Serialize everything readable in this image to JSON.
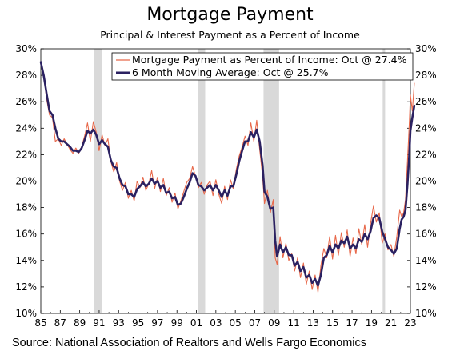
{
  "title": "Mortgage Payment",
  "subtitle": "Principal & Interest Payment as a Percent of Income",
  "source": "Source: National Association of Realtors and Wells Fargo Economics",
  "colors": {
    "raw": "#e8694b",
    "avg": "#2b2161",
    "recession": "#d9d9d9"
  },
  "chart_data": {
    "type": "line",
    "xlim": [
      1985,
      2023
    ],
    "ylim": [
      10,
      30
    ],
    "y_ticks": [
      "10%",
      "12%",
      "14%",
      "16%",
      "18%",
      "20%",
      "22%",
      "24%",
      "26%",
      "28%",
      "30%"
    ],
    "x_ticks": [
      "85",
      "87",
      "89",
      "91",
      "93",
      "95",
      "97",
      "99",
      "01",
      "03",
      "05",
      "07",
      "09",
      "11",
      "13",
      "15",
      "17",
      "19",
      "21",
      "23"
    ],
    "recessions": [
      [
        1990.5,
        1991.25
      ],
      [
        2001.2,
        2001.9
      ],
      [
        2007.9,
        2009.5
      ],
      [
        2020.15,
        2020.4
      ]
    ],
    "legend_position": "top-center",
    "series": [
      {
        "name": "Mortgage Payment as Percent of Income: Oct @ 27.4%",
        "style": "thin",
        "points": [
          [
            1985.0,
            29.0
          ],
          [
            1985.3,
            28.0
          ],
          [
            1985.6,
            26.2
          ],
          [
            1985.9,
            25.0
          ],
          [
            1986.2,
            24.8
          ],
          [
            1986.5,
            23.0
          ],
          [
            1986.8,
            23.2
          ],
          [
            1987.1,
            22.7
          ],
          [
            1987.4,
            23.2
          ],
          [
            1987.7,
            22.8
          ],
          [
            1988.0,
            22.4
          ],
          [
            1988.3,
            22.1
          ],
          [
            1988.6,
            22.5
          ],
          [
            1988.9,
            22.1
          ],
          [
            1989.2,
            22.6
          ],
          [
            1989.5,
            23.4
          ],
          [
            1989.8,
            24.4
          ],
          [
            1990.1,
            23.0
          ],
          [
            1990.4,
            24.5
          ],
          [
            1990.7,
            23.7
          ],
          [
            1991.0,
            22.3
          ],
          [
            1991.3,
            23.5
          ],
          [
            1991.6,
            22.7
          ],
          [
            1991.9,
            23.2
          ],
          [
            1992.2,
            21.5
          ],
          [
            1992.5,
            20.7
          ],
          [
            1992.8,
            21.4
          ],
          [
            1993.1,
            20.0
          ],
          [
            1993.4,
            19.3
          ],
          [
            1993.7,
            19.9
          ],
          [
            1994.0,
            18.7
          ],
          [
            1994.3,
            19.3
          ],
          [
            1994.6,
            18.5
          ],
          [
            1994.9,
            20.0
          ],
          [
            1995.2,
            19.5
          ],
          [
            1995.5,
            20.3
          ],
          [
            1995.8,
            19.3
          ],
          [
            1996.1,
            19.8
          ],
          [
            1996.4,
            20.8
          ],
          [
            1996.7,
            19.4
          ],
          [
            1997.0,
            20.3
          ],
          [
            1997.3,
            19.2
          ],
          [
            1997.6,
            20.2
          ],
          [
            1997.9,
            18.9
          ],
          [
            1998.2,
            19.5
          ],
          [
            1998.5,
            18.4
          ],
          [
            1998.8,
            19.1
          ],
          [
            1999.1,
            17.9
          ],
          [
            1999.4,
            18.5
          ],
          [
            1999.7,
            19.2
          ],
          [
            2000.0,
            19.9
          ],
          [
            2000.3,
            20.2
          ],
          [
            2000.6,
            21.1
          ],
          [
            2000.9,
            20.4
          ],
          [
            2001.2,
            19.5
          ],
          [
            2001.5,
            19.9
          ],
          [
            2001.8,
            19.0
          ],
          [
            2002.1,
            19.7
          ],
          [
            2002.4,
            20.0
          ],
          [
            2002.7,
            18.9
          ],
          [
            2003.0,
            20.1
          ],
          [
            2003.3,
            19.0
          ],
          [
            2003.6,
            18.3
          ],
          [
            2003.9,
            19.6
          ],
          [
            2004.2,
            18.6
          ],
          [
            2004.5,
            20.1
          ],
          [
            2004.8,
            19.4
          ],
          [
            2005.1,
            20.9
          ],
          [
            2005.4,
            21.9
          ],
          [
            2005.7,
            22.6
          ],
          [
            2006.0,
            23.4
          ],
          [
            2006.3,
            22.7
          ],
          [
            2006.6,
            24.4
          ],
          [
            2006.9,
            23.0
          ],
          [
            2007.2,
            24.6
          ],
          [
            2007.5,
            22.4
          ],
          [
            2007.8,
            20.4
          ],
          [
            2008.0,
            18.3
          ],
          [
            2008.3,
            19.3
          ],
          [
            2008.6,
            17.6
          ],
          [
            2008.9,
            18.6
          ],
          [
            2009.1,
            14.2
          ],
          [
            2009.3,
            13.7
          ],
          [
            2009.6,
            15.8
          ],
          [
            2009.9,
            14.2
          ],
          [
            2010.2,
            15.3
          ],
          [
            2010.5,
            14.0
          ],
          [
            2010.8,
            14.5
          ],
          [
            2011.1,
            13.2
          ],
          [
            2011.4,
            14.2
          ],
          [
            2011.7,
            12.7
          ],
          [
            2012.0,
            13.8
          ],
          [
            2012.3,
            12.2
          ],
          [
            2012.6,
            13.2
          ],
          [
            2012.9,
            11.8
          ],
          [
            2013.2,
            12.9
          ],
          [
            2013.5,
            11.6
          ],
          [
            2013.8,
            13.6
          ],
          [
            2014.1,
            14.9
          ],
          [
            2014.4,
            14.2
          ],
          [
            2014.7,
            15.8
          ],
          [
            2015.0,
            14.1
          ],
          [
            2015.3,
            15.9
          ],
          [
            2015.6,
            14.4
          ],
          [
            2015.9,
            16.1
          ],
          [
            2016.2,
            15.0
          ],
          [
            2016.5,
            16.3
          ],
          [
            2016.8,
            14.3
          ],
          [
            2017.1,
            15.7
          ],
          [
            2017.4,
            14.5
          ],
          [
            2017.7,
            16.4
          ],
          [
            2018.0,
            15.2
          ],
          [
            2018.3,
            16.7
          ],
          [
            2018.6,
            15.0
          ],
          [
            2018.9,
            16.8
          ],
          [
            2019.2,
            18.1
          ],
          [
            2019.5,
            16.9
          ],
          [
            2019.8,
            17.6
          ],
          [
            2020.1,
            15.3
          ],
          [
            2020.4,
            16.0
          ],
          [
            2020.7,
            14.8
          ],
          [
            2021.0,
            15.2
          ],
          [
            2021.3,
            14.3
          ],
          [
            2021.6,
            15.8
          ],
          [
            2021.9,
            17.8
          ],
          [
            2022.1,
            17.3
          ],
          [
            2022.3,
            17.6
          ],
          [
            2022.5,
            18.6
          ],
          [
            2022.7,
            21.6
          ],
          [
            2022.9,
            24.6
          ],
          [
            2023.0,
            26.5
          ],
          [
            2023.2,
            25.3
          ],
          [
            2023.4,
            27.4
          ]
        ]
      },
      {
        "name": "6 Month Moving Average: Oct @ 25.7%",
        "style": "thick",
        "points": [
          [
            1985.0,
            29.0
          ],
          [
            1985.3,
            28.0
          ],
          [
            1985.6,
            26.6
          ],
          [
            1985.9,
            25.3
          ],
          [
            1986.2,
            25.0
          ],
          [
            1986.5,
            24.0
          ],
          [
            1986.8,
            23.2
          ],
          [
            1987.1,
            23.0
          ],
          [
            1987.4,
            23.0
          ],
          [
            1987.7,
            22.8
          ],
          [
            1988.0,
            22.6
          ],
          [
            1988.3,
            22.3
          ],
          [
            1988.6,
            22.3
          ],
          [
            1988.9,
            22.2
          ],
          [
            1989.2,
            22.5
          ],
          [
            1989.5,
            23.1
          ],
          [
            1989.8,
            23.8
          ],
          [
            1990.1,
            23.6
          ],
          [
            1990.4,
            23.9
          ],
          [
            1990.7,
            23.5
          ],
          [
            1991.0,
            22.8
          ],
          [
            1991.3,
            23.1
          ],
          [
            1991.6,
            22.8
          ],
          [
            1991.9,
            22.6
          ],
          [
            1992.2,
            21.6
          ],
          [
            1992.5,
            21.1
          ],
          [
            1992.8,
            21.0
          ],
          [
            1993.1,
            20.2
          ],
          [
            1993.4,
            19.7
          ],
          [
            1993.7,
            19.6
          ],
          [
            1994.0,
            19.0
          ],
          [
            1994.3,
            19.0
          ],
          [
            1994.6,
            18.8
          ],
          [
            1994.9,
            19.4
          ],
          [
            1995.2,
            19.6
          ],
          [
            1995.5,
            19.9
          ],
          [
            1995.8,
            19.6
          ],
          [
            1996.1,
            19.8
          ],
          [
            1996.4,
            20.2
          ],
          [
            1996.7,
            19.8
          ],
          [
            1997.0,
            20.0
          ],
          [
            1997.3,
            19.5
          ],
          [
            1997.6,
            19.7
          ],
          [
            1997.9,
            19.1
          ],
          [
            1998.2,
            19.2
          ],
          [
            1998.5,
            18.7
          ],
          [
            1998.8,
            18.8
          ],
          [
            1999.1,
            18.2
          ],
          [
            1999.4,
            18.3
          ],
          [
            1999.7,
            18.8
          ],
          [
            2000.0,
            19.4
          ],
          [
            2000.3,
            19.9
          ],
          [
            2000.6,
            20.6
          ],
          [
            2000.9,
            20.4
          ],
          [
            2001.2,
            19.7
          ],
          [
            2001.5,
            19.6
          ],
          [
            2001.8,
            19.3
          ],
          [
            2002.1,
            19.5
          ],
          [
            2002.4,
            19.7
          ],
          [
            2002.7,
            19.3
          ],
          [
            2003.0,
            19.7
          ],
          [
            2003.3,
            19.3
          ],
          [
            2003.6,
            18.8
          ],
          [
            2003.9,
            19.3
          ],
          [
            2004.2,
            18.9
          ],
          [
            2004.5,
            19.6
          ],
          [
            2004.8,
            19.6
          ],
          [
            2005.1,
            20.5
          ],
          [
            2005.4,
            21.5
          ],
          [
            2005.7,
            22.3
          ],
          [
            2006.0,
            23.0
          ],
          [
            2006.3,
            23.0
          ],
          [
            2006.6,
            23.7
          ],
          [
            2006.9,
            23.3
          ],
          [
            2007.2,
            23.9
          ],
          [
            2007.5,
            23.0
          ],
          [
            2007.8,
            21.2
          ],
          [
            2008.0,
            19.2
          ],
          [
            2008.3,
            18.8
          ],
          [
            2008.6,
            17.9
          ],
          [
            2008.9,
            18.0
          ],
          [
            2009.1,
            15.5
          ],
          [
            2009.3,
            14.3
          ],
          [
            2009.6,
            15.2
          ],
          [
            2009.9,
            14.6
          ],
          [
            2010.2,
            15.0
          ],
          [
            2010.5,
            14.4
          ],
          [
            2010.8,
            14.4
          ],
          [
            2011.1,
            13.6
          ],
          [
            2011.4,
            13.9
          ],
          [
            2011.7,
            13.2
          ],
          [
            2012.0,
            13.5
          ],
          [
            2012.3,
            12.7
          ],
          [
            2012.6,
            12.9
          ],
          [
            2012.9,
            12.3
          ],
          [
            2013.2,
            12.6
          ],
          [
            2013.5,
            12.1
          ],
          [
            2013.8,
            12.9
          ],
          [
            2014.1,
            14.2
          ],
          [
            2014.4,
            14.4
          ],
          [
            2014.7,
            15.1
          ],
          [
            2015.0,
            14.6
          ],
          [
            2015.3,
            15.2
          ],
          [
            2015.6,
            14.9
          ],
          [
            2015.9,
            15.5
          ],
          [
            2016.2,
            15.3
          ],
          [
            2016.5,
            15.8
          ],
          [
            2016.8,
            14.9
          ],
          [
            2017.1,
            15.2
          ],
          [
            2017.4,
            14.9
          ],
          [
            2017.7,
            15.6
          ],
          [
            2018.0,
            15.4
          ],
          [
            2018.3,
            16.0
          ],
          [
            2018.6,
            15.6
          ],
          [
            2018.9,
            16.2
          ],
          [
            2019.2,
            17.2
          ],
          [
            2019.5,
            17.4
          ],
          [
            2019.8,
            17.2
          ],
          [
            2020.1,
            16.2
          ],
          [
            2020.4,
            15.6
          ],
          [
            2020.7,
            15.0
          ],
          [
            2021.0,
            14.8
          ],
          [
            2021.3,
            14.5
          ],
          [
            2021.6,
            14.9
          ],
          [
            2021.9,
            16.4
          ],
          [
            2022.1,
            17.1
          ],
          [
            2022.3,
            17.3
          ],
          [
            2022.5,
            17.8
          ],
          [
            2022.7,
            19.8
          ],
          [
            2022.9,
            22.2
          ],
          [
            2023.0,
            23.8
          ],
          [
            2023.2,
            24.8
          ],
          [
            2023.4,
            25.7
          ]
        ]
      }
    ]
  }
}
